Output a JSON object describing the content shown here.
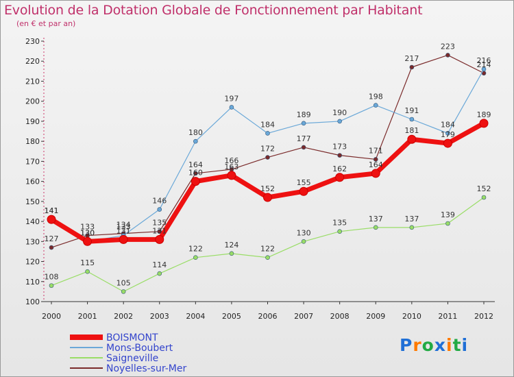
{
  "chart_data": {
    "type": "line",
    "title": "Evolution de la Dotation Globale de Fonctionnement par Habitant",
    "subtitle": "(en € et par an)",
    "x": [
      "2000",
      "2001",
      "2002",
      "2003",
      "2004",
      "2005",
      "2006",
      "2007",
      "2008",
      "2009",
      "2010",
      "2011",
      "2012"
    ],
    "ylim": [
      100,
      230
    ],
    "yticks": [
      100,
      110,
      120,
      130,
      140,
      150,
      160,
      170,
      180,
      190,
      200,
      210,
      220,
      230
    ],
    "grid": false,
    "legend": "bottom-left",
    "series": [
      {
        "name": "BOISMONT",
        "color": "#ee1111",
        "width": 7,
        "values": [
          141,
          130,
          131,
          131,
          160,
          163,
          152,
          155,
          162,
          164,
          181,
          179,
          189
        ]
      },
      {
        "name": "Mons-Boubert",
        "color": "#6aa8d8",
        "width": 1.2,
        "values": [
          141,
          130,
          133,
          146,
          180,
          197,
          184,
          189,
          190,
          198,
          191,
          184,
          216
        ]
      },
      {
        "name": "Saigneville",
        "color": "#99dd66",
        "width": 1.2,
        "values": [
          108,
          115,
          105,
          114,
          122,
          124,
          122,
          130,
          135,
          137,
          137,
          139,
          152
        ]
      },
      {
        "name": "Noyelles-sur-Mer",
        "color": "#7a2a2a",
        "width": 1.2,
        "values": [
          127,
          133,
          134,
          135,
          164,
          166,
          172,
          177,
          173,
          171,
          217,
          223,
          214
        ]
      }
    ]
  },
  "logo": {
    "text": "Proxiti",
    "colors": [
      "#1f6fd6",
      "#ff7a00",
      "#22aa44",
      "#1f6fd6",
      "#ff7a00",
      "#22aa44",
      "#1f6fd6"
    ]
  }
}
